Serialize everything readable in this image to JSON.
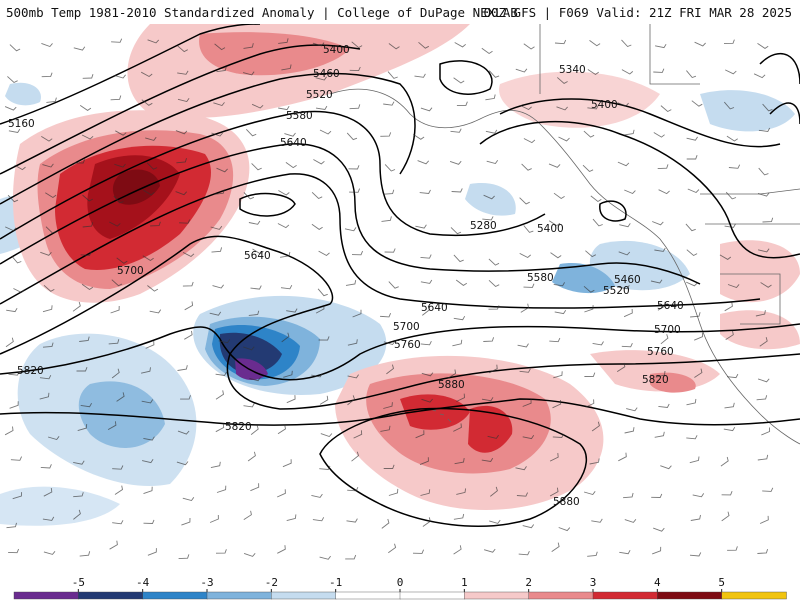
{
  "header": {
    "left_title": "500mb Temp 1981-2010 Standardized Anomaly | College of DuPage NEXLAB",
    "right_title": "00Z GFS | F069 Valid: 21Z FRI MAR 28 2025"
  },
  "legend": {
    "ticks": [
      "-5",
      "-4",
      "-3",
      "-2",
      "-1",
      "0",
      "1",
      "2",
      "3",
      "4",
      "5"
    ],
    "colors": [
      "#6a2c8f",
      "#233a73",
      "#2e84c8",
      "#7fb3dc",
      "#c5dcef",
      "#ffffff",
      "#ffffff",
      "#f6c9c9",
      "#e98a8c",
      "#d22a33",
      "#7e0b13",
      "#f1c40f"
    ]
  },
  "map": {
    "contour_labels": [
      "5160",
      "5400",
      "5460",
      "5520",
      "5580",
      "5640",
      "5700",
      "5640",
      "5640",
      "5760",
      "5700",
      "5820",
      "5820",
      "5880",
      "5880",
      "5340",
      "5400",
      "5280",
      "5400",
      "5580",
      "5460",
      "5520",
      "5640",
      "5700",
      "5760",
      "5820"
    ]
  }
}
